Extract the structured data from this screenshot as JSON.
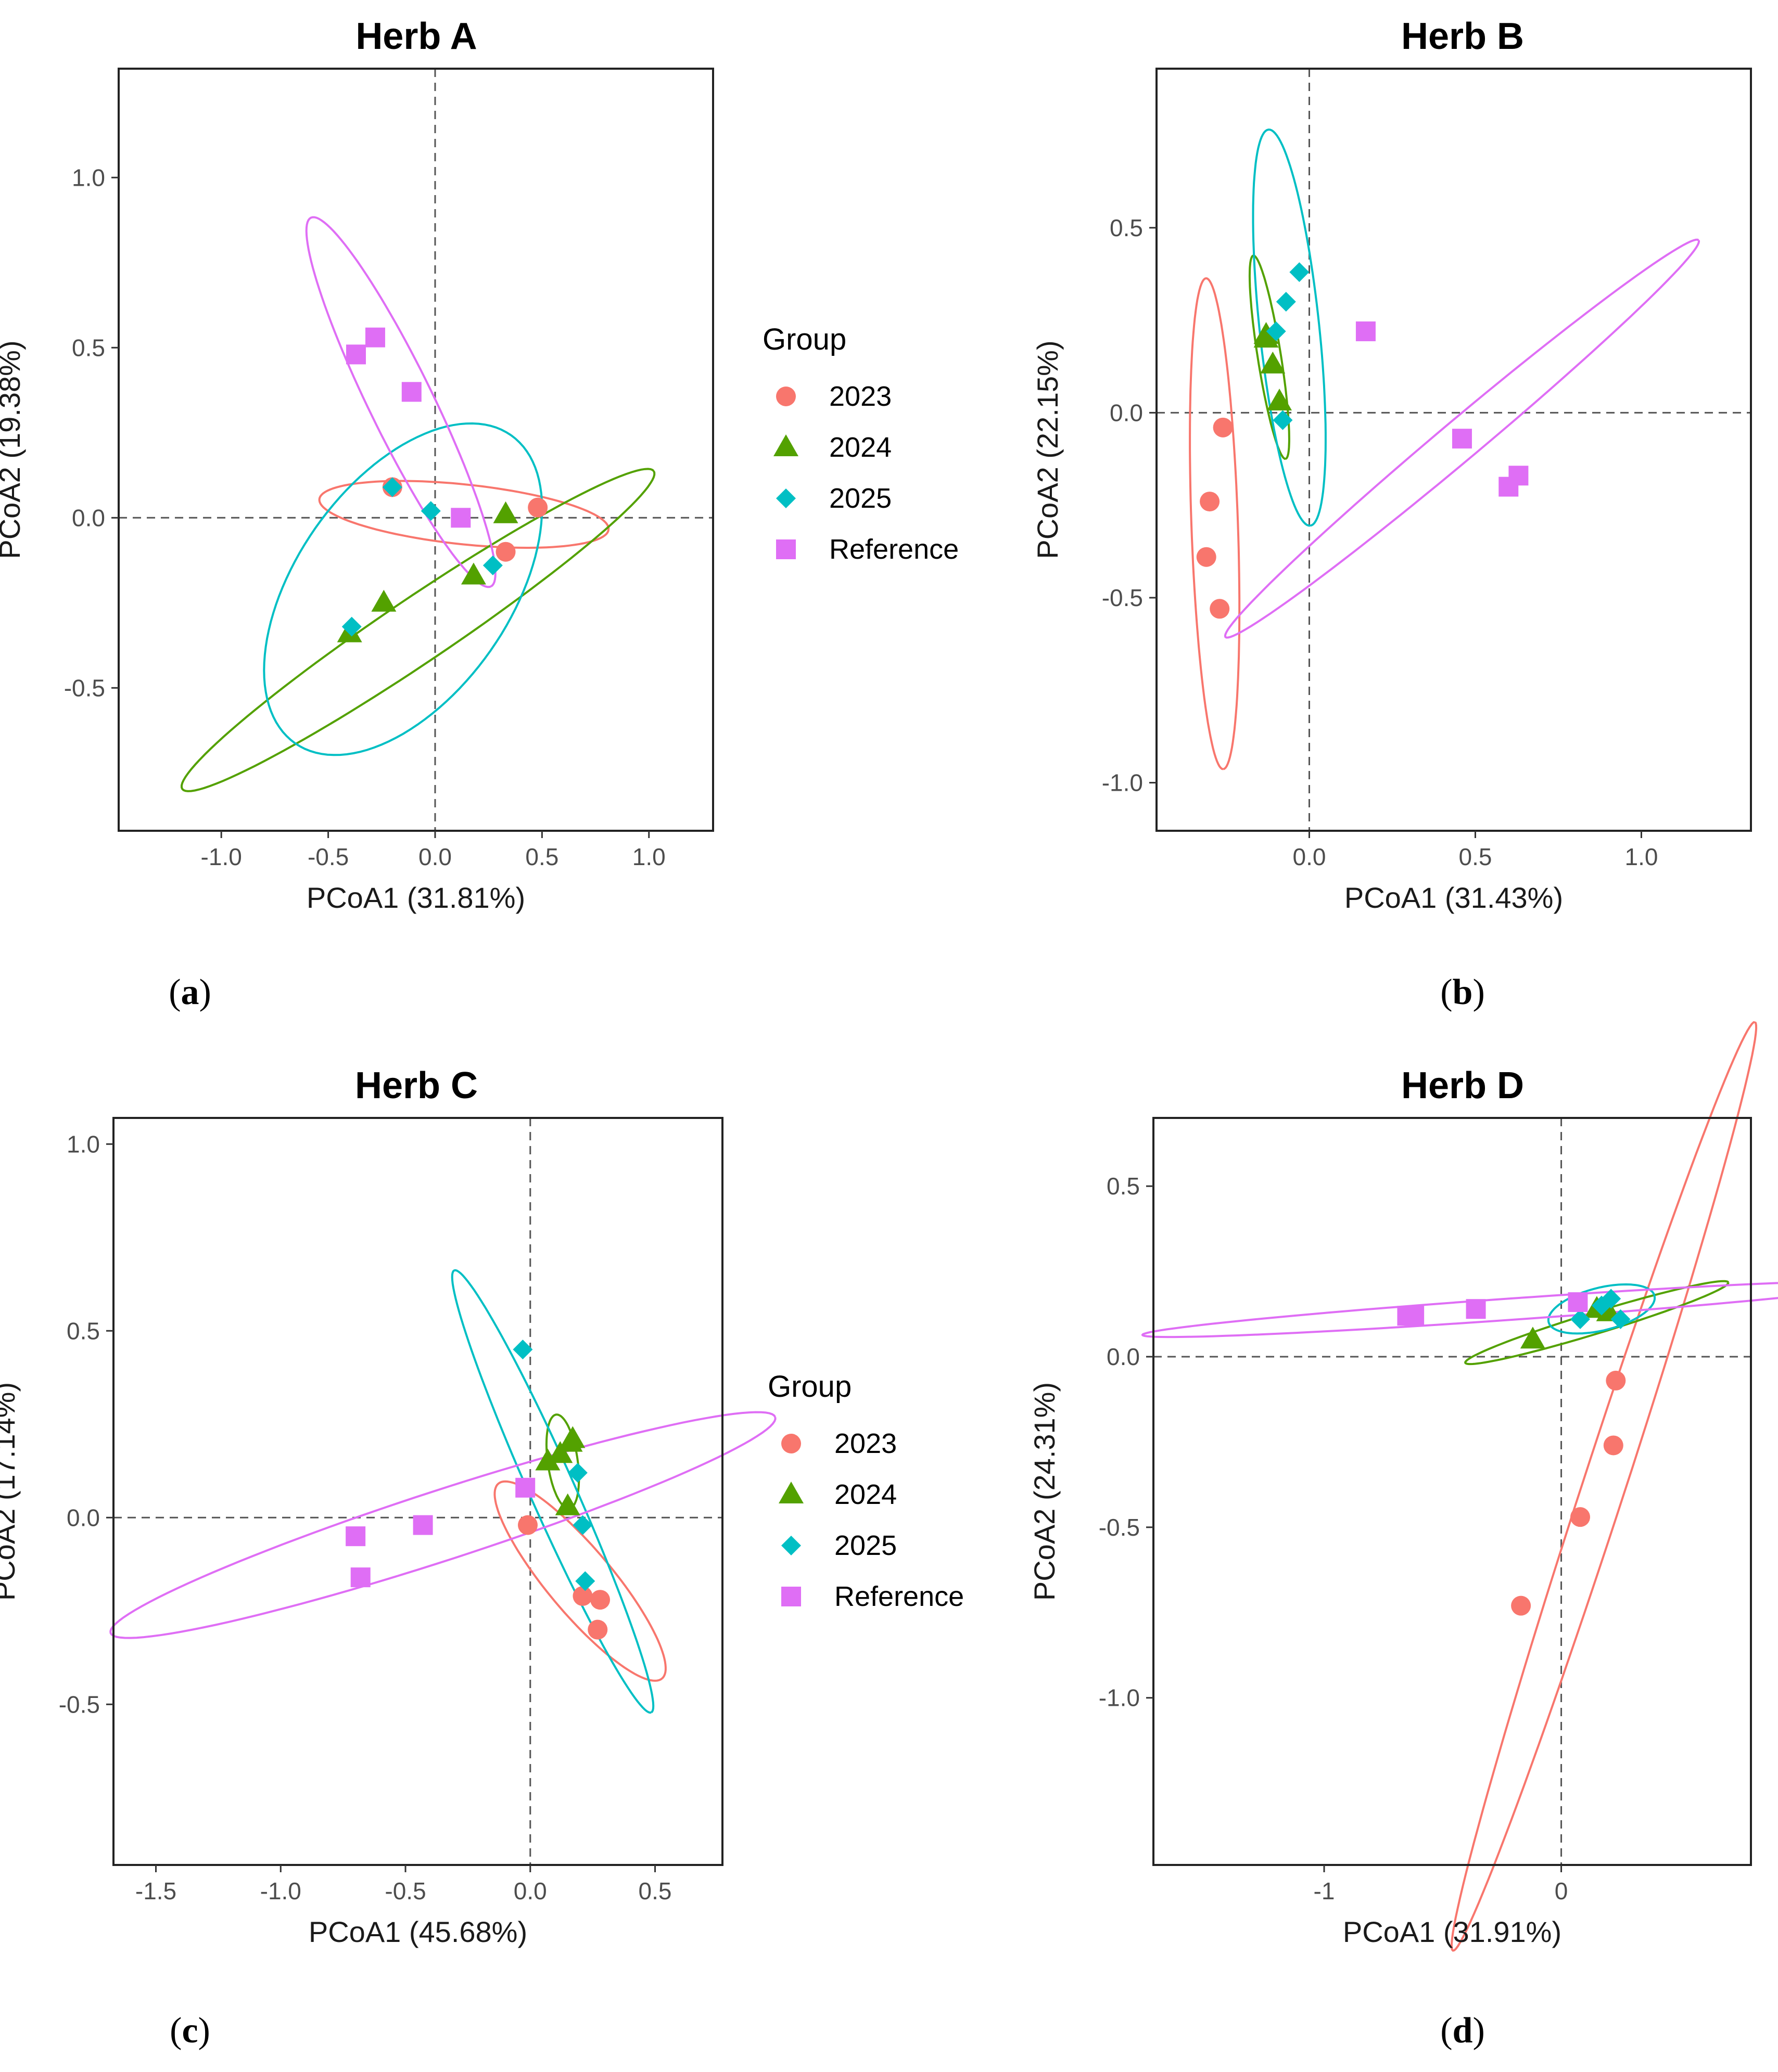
{
  "legend": {
    "title": "Group",
    "items": [
      {
        "label": "2023",
        "color": "#F8766D",
        "shape": "circle"
      },
      {
        "label": "2024",
        "color": "#53A100",
        "shape": "triangle"
      },
      {
        "label": "2025",
        "color": "#00BFC4",
        "shape": "diamond"
      },
      {
        "label": "Reference",
        "color": "#DF6EF5",
        "shape": "square"
      }
    ]
  },
  "chart_data": [
    {
      "panel": "a",
      "caption_label": "a",
      "type": "scatter",
      "title": "Herb A",
      "xlabel": "PCoA1 (31.81%)",
      "ylabel": "PCoA2 (19.38%)",
      "xlim": [
        -1.48,
        1.3
      ],
      "ylim": [
        -0.92,
        1.32
      ],
      "xticks": [
        "-1.0",
        "-0.5",
        "0.0",
        "0.5",
        "1.0"
      ],
      "xtick_values": [
        -1,
        -0.5,
        0,
        0.5,
        1
      ],
      "yticks": [
        "-0.5",
        "0.0",
        "0.5",
        "1.0"
      ],
      "ytick_values": [
        -0.5,
        0,
        0.5,
        1
      ],
      "series": [
        {
          "name": "2023",
          "points": [
            [
              -0.2,
              0.09
            ],
            [
              0.33,
              -0.1
            ],
            [
              0.48,
              0.03
            ]
          ],
          "ellipse": {
            "cx": 0.135,
            "cy": 0.01,
            "rx": 0.68,
            "ry": 0.14,
            "angle_deg": -6
          }
        },
        {
          "name": "2024",
          "points": [
            [
              -0.4,
              -0.34
            ],
            [
              -0.24,
              -0.25
            ],
            [
              0.18,
              -0.17
            ],
            [
              0.33,
              0.01
            ]
          ],
          "ellipse": {
            "cx": -0.08,
            "cy": -0.33,
            "rx": 1.33,
            "ry": 0.15,
            "angle_deg": 34
          }
        },
        {
          "name": "2025",
          "points": [
            [
              -0.39,
              -0.32
            ],
            [
              -0.02,
              0.02
            ],
            [
              0.27,
              -0.14
            ],
            [
              -0.2,
              0.09
            ]
          ],
          "ellipse": {
            "cx": -0.15,
            "cy": -0.21,
            "rx": 0.88,
            "ry": 0.5,
            "angle_deg": 55
          }
        },
        {
          "name": "Reference",
          "points": [
            [
              -0.37,
              0.48
            ],
            [
              -0.28,
              0.53
            ],
            [
              -0.11,
              0.37
            ],
            [
              0.12,
              0.0
            ]
          ],
          "ellipse": {
            "cx": -0.16,
            "cy": 0.34,
            "rx": 0.96,
            "ry": 0.15,
            "angle_deg": -64
          }
        }
      ]
    },
    {
      "panel": "b",
      "caption_label": "b",
      "type": "scatter",
      "title": "Herb B",
      "xlabel": "PCoA1 (31.43%)",
      "ylabel": "PCoA2 (22.15%)",
      "xlim": [
        -0.46,
        1.33
      ],
      "ylim": [
        -1.13,
        0.93
      ],
      "xticks": [
        "0.0",
        "0.5",
        "1.0"
      ],
      "xtick_values": [
        0,
        0.5,
        1
      ],
      "yticks": [
        "-1.0",
        "-0.5",
        "0.0",
        "0.5"
      ],
      "ytick_values": [
        -1,
        -0.5,
        0,
        0.5
      ],
      "series": [
        {
          "name": "2023",
          "points": [
            [
              -0.26,
              -0.04
            ],
            [
              -0.3,
              -0.24
            ],
            [
              -0.31,
              -0.39
            ],
            [
              -0.27,
              -0.53
            ]
          ],
          "ellipse": {
            "cx": -0.285,
            "cy": -0.3,
            "rx": 0.74,
            "ry": 0.07,
            "angle_deg": -88
          }
        },
        {
          "name": "2024",
          "points": [
            [
              -0.13,
              0.2
            ],
            [
              -0.13,
              0.21
            ],
            [
              -0.11,
              0.13
            ],
            [
              -0.09,
              0.03
            ]
          ],
          "ellipse": {
            "cx": -0.12,
            "cy": 0.15,
            "rx": 0.31,
            "ry": 0.035,
            "angle_deg": -81
          }
        },
        {
          "name": "2025",
          "points": [
            [
              -0.1,
              0.22
            ],
            [
              -0.07,
              0.3
            ],
            [
              -0.03,
              0.38
            ],
            [
              -0.08,
              -0.02
            ]
          ],
          "ellipse": {
            "cx": -0.06,
            "cy": 0.23,
            "rx": 0.6,
            "ry": 0.09,
            "angle_deg": -84
          }
        },
        {
          "name": "Reference",
          "points": [
            [
              0.17,
              0.22
            ],
            [
              0.46,
              -0.07
            ],
            [
              0.6,
              -0.2
            ],
            [
              0.63,
              -0.17
            ]
          ],
          "ellipse": {
            "cx": 0.46,
            "cy": -0.07,
            "rx": 0.93,
            "ry": 0.06,
            "angle_deg": 40
          }
        }
      ]
    },
    {
      "panel": "c",
      "caption_label": "c",
      "type": "scatter",
      "title": "Herb C",
      "xlabel": "PCoA1 (45.68%)",
      "ylabel": "PCoA2 (17.14%)",
      "xlim": [
        -1.67,
        0.77
      ],
      "ylim": [
        -0.93,
        1.07
      ],
      "xticks": [
        "-1.5",
        "-1.0",
        "-0.5",
        "0.0",
        "0.5"
      ],
      "xtick_values": [
        -1.5,
        -1,
        -0.5,
        0,
        0.5
      ],
      "yticks": [
        "-0.5",
        "0.0",
        "0.5",
        "1.0"
      ],
      "ytick_values": [
        -0.5,
        0,
        0.5,
        1
      ],
      "series": [
        {
          "name": "2023",
          "points": [
            [
              -0.01,
              -0.02
            ],
            [
              0.21,
              -0.21
            ],
            [
              0.28,
              -0.22
            ],
            [
              0.27,
              -0.3
            ]
          ],
          "ellipse": {
            "cx": 0.2,
            "cy": -0.17,
            "rx": 0.51,
            "ry": 0.13,
            "angle_deg": -50
          }
        },
        {
          "name": "2024",
          "points": [
            [
              0.07,
              0.15
            ],
            [
              0.12,
              0.17
            ],
            [
              0.16,
              0.2
            ],
            [
              0.17,
              0.21
            ],
            [
              0.15,
              0.03
            ]
          ],
          "ellipse": {
            "cx": 0.13,
            "cy": 0.15,
            "rx": 0.19,
            "ry": 0.06,
            "angle_deg": -82
          }
        },
        {
          "name": "2025",
          "points": [
            [
              -0.03,
              0.45
            ],
            [
              0.19,
              0.12
            ],
            [
              0.21,
              -0.02
            ],
            [
              0.22,
              -0.17
            ]
          ],
          "ellipse": {
            "cx": 0.09,
            "cy": 0.07,
            "rx": 0.97,
            "ry": 0.09,
            "angle_deg": -66
          }
        },
        {
          "name": "Reference",
          "points": [
            [
              -0.7,
              -0.05
            ],
            [
              -0.43,
              -0.02
            ],
            [
              -0.68,
              -0.16
            ],
            [
              -0.02,
              0.08
            ]
          ],
          "ellipse": {
            "cx": -0.35,
            "cy": -0.02,
            "rx": 1.4,
            "ry": 0.14,
            "angle_deg": 18
          }
        }
      ]
    },
    {
      "panel": "d",
      "caption_label": "d",
      "type": "scatter",
      "title": "Herb D",
      "xlabel": "PCoA1 (31.91%)",
      "ylabel": "PCoA2 (24.31%)",
      "xlim": [
        -1.72,
        0.8
      ],
      "ylim": [
        -1.49,
        0.7
      ],
      "xticks": [
        "-1",
        "0"
      ],
      "xtick_values": [
        -1,
        0
      ],
      "yticks": [
        "-1.0",
        "-0.5",
        "0.0",
        "0.5"
      ],
      "ytick_values": [
        -1,
        -0.5,
        0,
        0.5
      ],
      "series": [
        {
          "name": "2023",
          "points": [
            [
              0.23,
              -0.07
            ],
            [
              0.22,
              -0.26
            ],
            [
              0.08,
              -0.47
            ],
            [
              -0.17,
              -0.73
            ]
          ],
          "ellipse": {
            "cx": 0.18,
            "cy": -0.38,
            "rx": 2.06,
            "ry": 0.09,
            "angle_deg": 72
          }
        },
        {
          "name": "2024",
          "points": [
            [
              -0.12,
              0.05
            ],
            [
              0.15,
              0.14
            ],
            [
              0.2,
              0.13
            ]
          ],
          "ellipse": {
            "cx": 0.15,
            "cy": 0.1,
            "rx": 0.58,
            "ry": 0.045,
            "angle_deg": 17
          }
        },
        {
          "name": "2025",
          "points": [
            [
              0.08,
              0.11
            ],
            [
              0.17,
              0.15
            ],
            [
              0.21,
              0.17
            ],
            [
              0.25,
              0.11
            ]
          ],
          "ellipse": {
            "cx": 0.17,
            "cy": 0.14,
            "rx": 0.23,
            "ry": 0.09,
            "angle_deg": 14
          }
        },
        {
          "name": "Reference",
          "points": [
            [
              -0.65,
              0.12
            ],
            [
              -0.62,
              0.12
            ],
            [
              -0.36,
              0.14
            ],
            [
              0.07,
              0.16
            ]
          ],
          "ellipse": {
            "cx": -0.2,
            "cy": 0.14,
            "rx": 1.57,
            "ry": 0.045,
            "angle_deg": 4
          }
        }
      ]
    }
  ]
}
